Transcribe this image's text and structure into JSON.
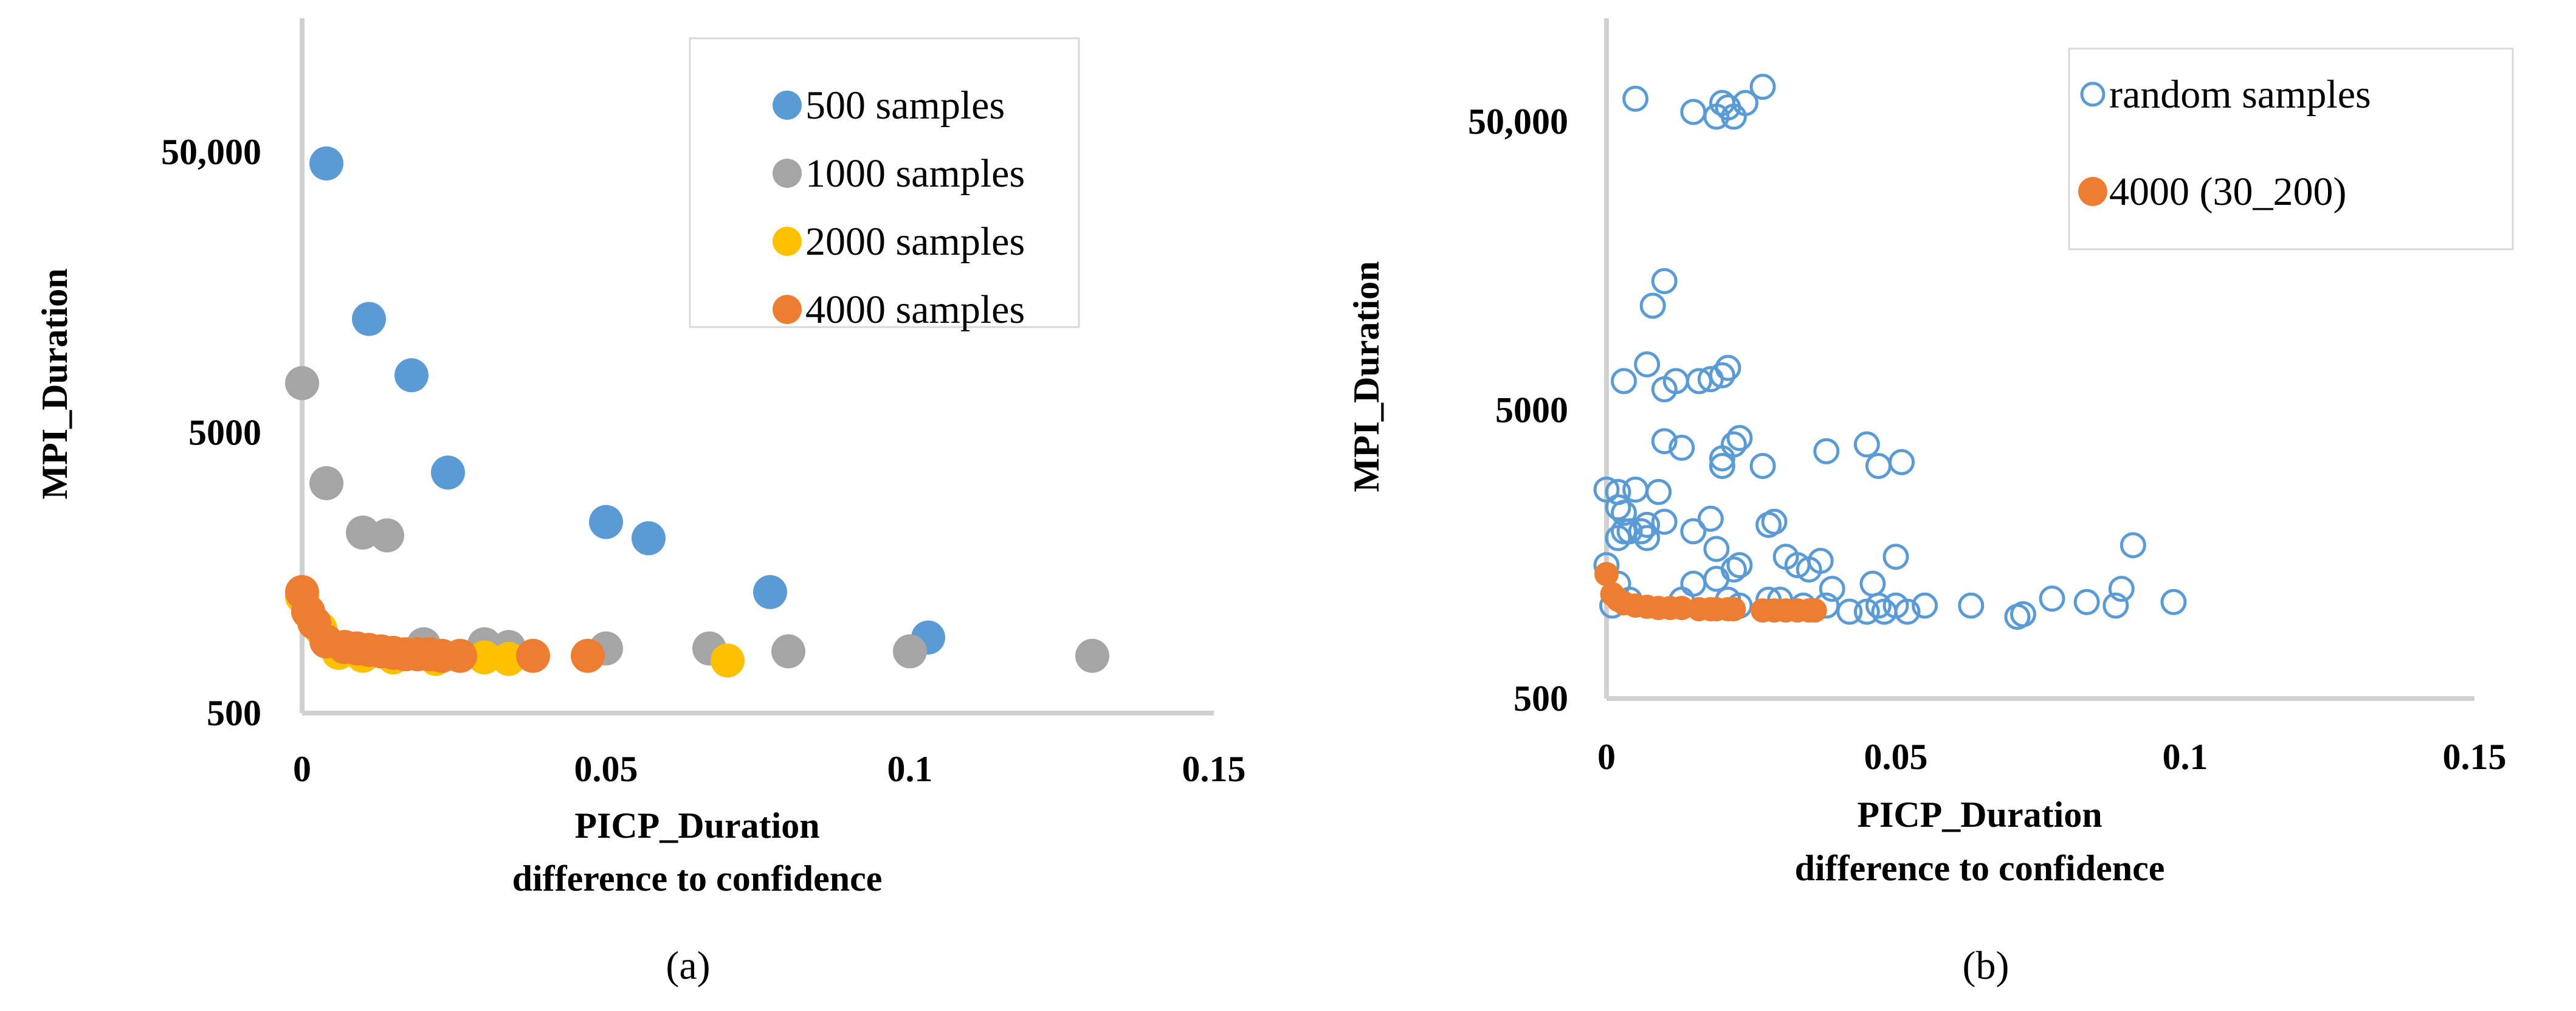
{
  "chart_data": [
    {
      "type": "scatter",
      "panel_label": "(a)",
      "xlabel": [
        "PICP_Duration",
        "difference to confidence"
      ],
      "ylabel": "MPI_Duration",
      "xlim": [
        0,
        0.15
      ],
      "ylim": [
        500,
        100000
      ],
      "y_scale": "log",
      "x_ticks": [
        "0",
        "0.05",
        "0.1",
        "0.15"
      ],
      "y_ticks": [
        "500",
        "5000",
        "50,000"
      ],
      "grid": false,
      "legend_position": "top-right",
      "series": [
        {
          "name": "500 samples",
          "color": "#5b9bd5",
          "marker": "filled",
          "points": [
            [
              0.004,
              45500
            ],
            [
              0.011,
              12700
            ],
            [
              0.018,
              8000
            ],
            [
              0.024,
              3600
            ],
            [
              0.05,
              2400
            ],
            [
              0.057,
              2100
            ],
            [
              0.077,
              1350
            ],
            [
              0.103,
              930
            ]
          ]
        },
        {
          "name": "1000 samples",
          "color": "#a5a5a5",
          "marker": "filled",
          "points": [
            [
              0,
              7500
            ],
            [
              0.004,
              3300
            ],
            [
              0.01,
              2200
            ],
            [
              0.014,
              2150
            ],
            [
              0.02,
              880
            ],
            [
              0.03,
              880
            ],
            [
              0.034,
              860
            ],
            [
              0.05,
              850
            ],
            [
              0.067,
              850
            ],
            [
              0.08,
              830
            ],
            [
              0.1,
              830
            ],
            [
              0.13,
              800
            ]
          ]
        },
        {
          "name": "2000 samples",
          "color": "#ffc000",
          "marker": "filled",
          "points": [
            [
              0,
              1300
            ],
            [
              0.001,
              1150
            ],
            [
              0.003,
              1000
            ],
            [
              0.006,
              820
            ],
            [
              0.01,
              800
            ],
            [
              0.015,
              790
            ],
            [
              0.022,
              780
            ],
            [
              0.03,
              790
            ],
            [
              0.034,
              780
            ],
            [
              0.07,
              770
            ]
          ]
        },
        {
          "name": "4000 samples",
          "color": "#ed7d31",
          "marker": "filled",
          "points": [
            [
              0,
              1350
            ],
            [
              0.001,
              1150
            ],
            [
              0.002,
              1050
            ],
            [
              0.004,
              900
            ],
            [
              0.007,
              860
            ],
            [
              0.009,
              850
            ],
            [
              0.011,
              840
            ],
            [
              0.013,
              830
            ],
            [
              0.015,
              820
            ],
            [
              0.017,
              810
            ],
            [
              0.019,
              810
            ],
            [
              0.021,
              810
            ],
            [
              0.023,
              800
            ],
            [
              0.026,
              800
            ],
            [
              0.038,
              800
            ],
            [
              0.047,
              800
            ]
          ]
        }
      ]
    },
    {
      "type": "scatter",
      "panel_label": "(b)",
      "xlabel": [
        "PICP_Duration",
        "difference to confidence"
      ],
      "ylabel": "MPI_Duration",
      "xlim": [
        0,
        0.15
      ],
      "ylim": [
        500,
        75000
      ],
      "y_scale": "log",
      "x_ticks": [
        "0",
        "0.05",
        "0.1",
        "0.15"
      ],
      "y_ticks": [
        "500",
        "5000",
        "50,000"
      ],
      "grid": false,
      "legend_position": "top-right",
      "series": [
        {
          "name": "random samples",
          "color": "#5b9bd5",
          "marker": "hollow",
          "points": [
            [
              0.005,
              60000
            ],
            [
              0.015,
              54000
            ],
            [
              0.019,
              52000
            ],
            [
              0.02,
              58000
            ],
            [
              0.021,
              56000
            ],
            [
              0.022,
              52000
            ],
            [
              0.024,
              58000
            ],
            [
              0.027,
              66000
            ],
            [
              0.008,
              11500
            ],
            [
              0.01,
              14000
            ],
            [
              0.003,
              6300
            ],
            [
              0.007,
              7200
            ],
            [
              0.01,
              5900
            ],
            [
              0.012,
              6300
            ],
            [
              0.016,
              6300
            ],
            [
              0.018,
              6400
            ],
            [
              0.02,
              6600
            ],
            [
              0.021,
              7000
            ],
            [
              0.01,
              3900
            ],
            [
              0.013,
              3700
            ],
            [
              0.02,
              3200
            ],
            [
              0.02,
              3400
            ],
            [
              0.022,
              3800
            ],
            [
              0.023,
              4000
            ],
            [
              0.027,
              3200
            ],
            [
              0.038,
              3600
            ],
            [
              0.045,
              3800
            ],
            [
              0.047,
              3200
            ],
            [
              0.051,
              3300
            ],
            [
              0,
              2650
            ],
            [
              0.002,
              2600
            ],
            [
              0.005,
              2650
            ],
            [
              0.009,
              2600
            ],
            [
              0.002,
              2300
            ],
            [
              0.003,
              2200
            ],
            [
              0.003,
              1900
            ],
            [
              0.006,
              1900
            ],
            [
              0.007,
              2000
            ],
            [
              0.004,
              1900
            ],
            [
              0.002,
              1800
            ],
            [
              0.007,
              1800
            ],
            [
              0.01,
              2050
            ],
            [
              0.015,
              1900
            ],
            [
              0.018,
              2100
            ],
            [
              0.028,
              2000
            ],
            [
              0.029,
              2050
            ],
            [
              0,
              1450
            ],
            [
              0.002,
              1250
            ],
            [
              0.015,
              1250
            ],
            [
              0.019,
              1300
            ],
            [
              0.019,
              1650
            ],
            [
              0.022,
              1400
            ],
            [
              0.023,
              1450
            ],
            [
              0.031,
              1550
            ],
            [
              0.033,
              1450
            ],
            [
              0.035,
              1400
            ],
            [
              0.037,
              1500
            ],
            [
              0.039,
              1200
            ],
            [
              0.046,
              1250
            ],
            [
              0.05,
              1550
            ],
            [
              0.091,
              1700
            ],
            [
              0.089,
              1200
            ],
            [
              0.001,
              1050
            ],
            [
              0.004,
              1100
            ],
            [
              0.013,
              1100
            ],
            [
              0.021,
              1100
            ],
            [
              0.023,
              1050
            ],
            [
              0.028,
              1100
            ],
            [
              0.03,
              1100
            ],
            [
              0.034,
              1050
            ],
            [
              0.038,
              1050
            ],
            [
              0.042,
              1000
            ],
            [
              0.045,
              1000
            ],
            [
              0.047,
              1050
            ],
            [
              0.048,
              1000
            ],
            [
              0.05,
              1050
            ],
            [
              0.052,
              1000
            ],
            [
              0.055,
              1050
            ],
            [
              0.063,
              1050
            ],
            [
              0.071,
              960
            ],
            [
              0.072,
              980
            ],
            [
              0.077,
              1110
            ],
            [
              0.083,
              1080
            ],
            [
              0.088,
              1050
            ],
            [
              0.098,
              1080
            ]
          ]
        },
        {
          "name": "4000 (30_200)",
          "color": "#ed7d31",
          "marker": "filled",
          "points": [
            [
              0,
              1350
            ],
            [
              0.001,
              1150
            ],
            [
              0.002,
              1100
            ],
            [
              0.003,
              1070
            ],
            [
              0.005,
              1050
            ],
            [
              0.007,
              1040
            ],
            [
              0.009,
              1030
            ],
            [
              0.011,
              1030
            ],
            [
              0.013,
              1030
            ],
            [
              0.016,
              1020
            ],
            [
              0.018,
              1020
            ],
            [
              0.019,
              1020
            ],
            [
              0.021,
              1020
            ],
            [
              0.022,
              1020
            ],
            [
              0.027,
              1010
            ],
            [
              0.029,
              1010
            ],
            [
              0.031,
              1010
            ],
            [
              0.033,
              1010
            ],
            [
              0.035,
              1010
            ],
            [
              0.036,
              1010
            ]
          ]
        }
      ]
    }
  ]
}
